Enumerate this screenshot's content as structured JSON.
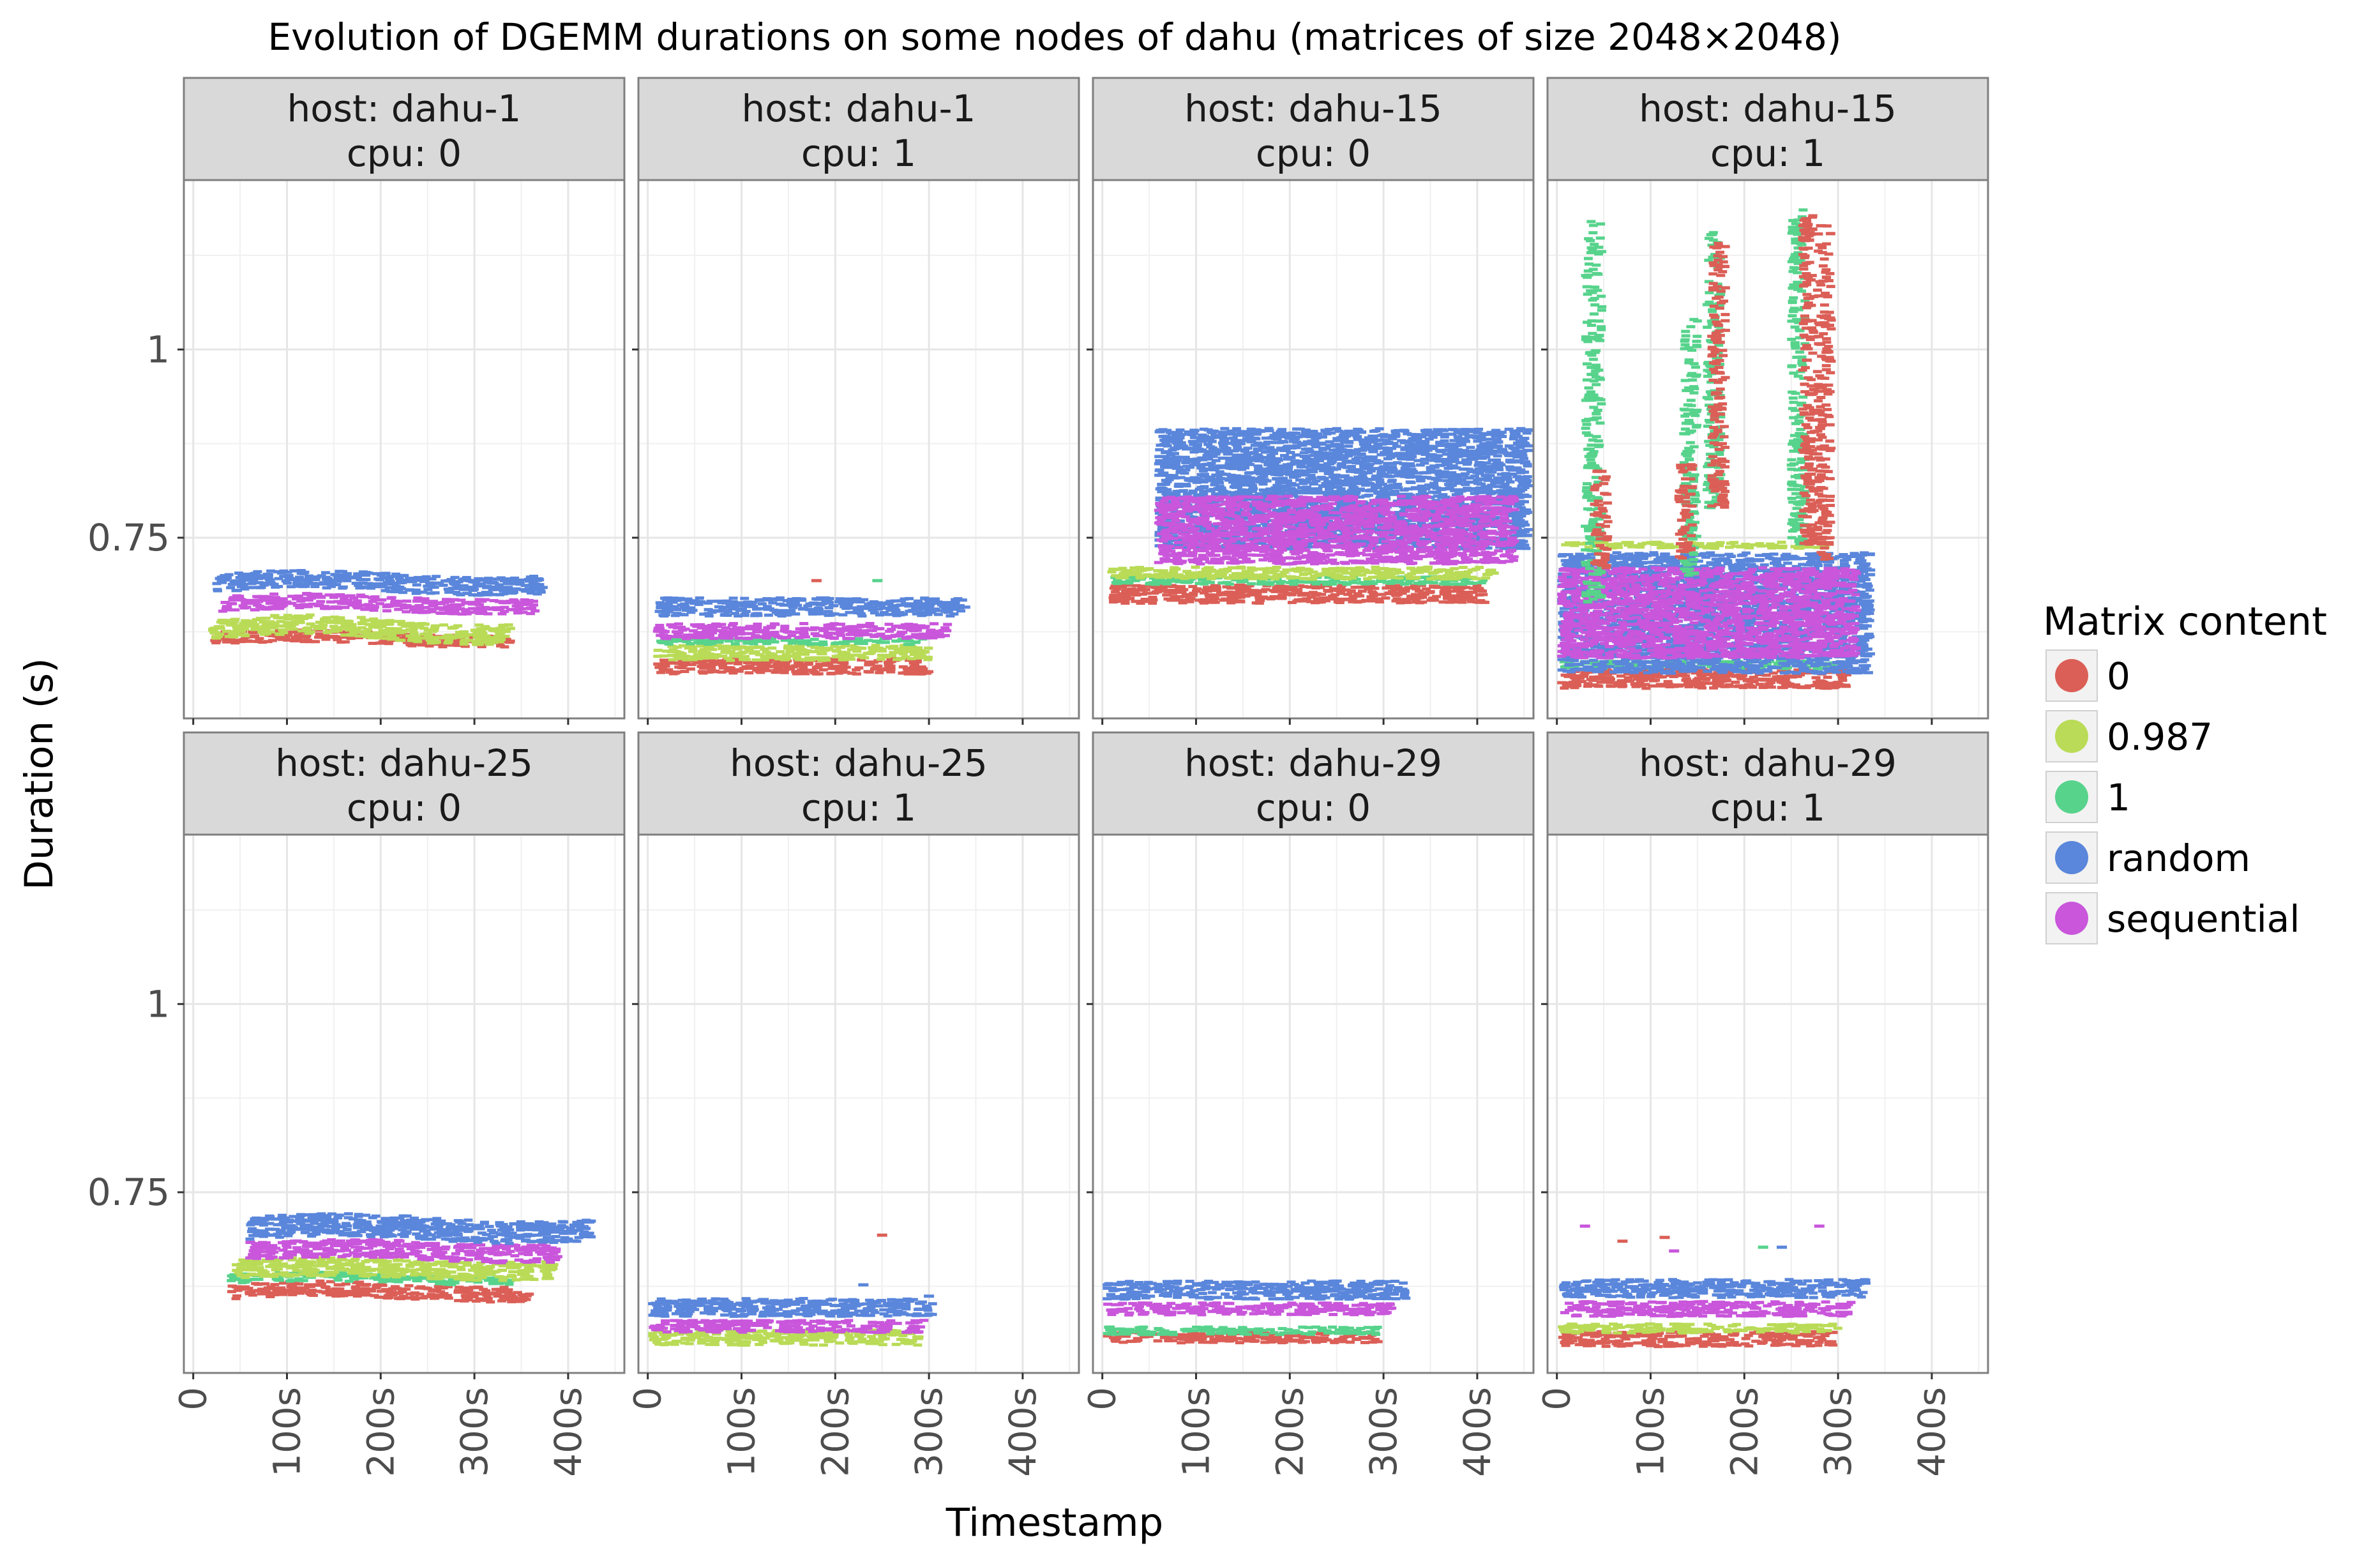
{
  "chart_data": {
    "type": "scatter",
    "title": "Evolution of DGEMM durations on some nodes of dahu (matrices of size 2048×2048)",
    "xlabel": "Timestamp",
    "ylabel": "Duration (s)",
    "xlim": [
      -10,
      460
    ],
    "ylim": [
      0.51,
      1.225
    ],
    "x_ticks": [
      {
        "value": 0,
        "label": "0"
      },
      {
        "value": 100,
        "label": "100s"
      },
      {
        "value": 200,
        "label": "200s"
      },
      {
        "value": 300,
        "label": "300s"
      },
      {
        "value": 400,
        "label": "400s"
      }
    ],
    "y_ticks": [
      {
        "value": 0.75,
        "label": "0.75"
      },
      {
        "value": 1,
        "label": "1"
      }
    ],
    "grid": true,
    "legend": {
      "title": "Matrix content",
      "position": "right",
      "entries": [
        {
          "name": "0",
          "color": "#DB5F57"
        },
        {
          "name": "0.987",
          "color": "#B9DB57"
        },
        {
          "name": "1",
          "color": "#57D38C"
        },
        {
          "name": "random",
          "color": "#5A86DB"
        },
        {
          "name": "sequential",
          "color": "#C956DB"
        }
      ]
    },
    "panels": [
      {
        "host": "host: dahu-1",
        "cpu": "cpu: 0",
        "bands": [
          {
            "series": "0",
            "x0": 20,
            "x1": 340,
            "y": 0.616,
            "amp": 0.004,
            "spread": 0.008
          },
          {
            "series": "0.987",
            "x0": 20,
            "x1": 340,
            "y": 0.628,
            "amp": 0.007,
            "spread": 0.013
          },
          {
            "series": "sequential",
            "x0": 30,
            "x1": 365,
            "y": 0.662,
            "amp": 0.004,
            "spread": 0.01
          },
          {
            "series": "random",
            "x0": 25,
            "x1": 375,
            "y": 0.69,
            "amp": 0.005,
            "spread": 0.012
          }
        ]
      },
      {
        "host": "host: dahu-1",
        "cpu": "cpu: 1",
        "bands": [
          {
            "series": "0",
            "x0": 10,
            "x1": 300,
            "y": 0.579,
            "amp": 0.0,
            "spread": 0.01
          },
          {
            "series": "0.987",
            "x0": 10,
            "x1": 300,
            "y": 0.597,
            "amp": 0.0,
            "spread": 0.01
          },
          {
            "series": "1",
            "x0": 10,
            "x1": 300,
            "y": 0.612,
            "amp": 0.0,
            "spread": 0.004
          },
          {
            "series": "sequential",
            "x0": 10,
            "x1": 320,
            "y": 0.626,
            "amp": 0.0,
            "spread": 0.01
          },
          {
            "series": "random",
            "x0": 10,
            "x1": 340,
            "y": 0.658,
            "amp": 0.0,
            "spread": 0.012
          }
        ],
        "points": [
          {
            "series": "0",
            "x": 180,
            "y": 0.693
          },
          {
            "series": "1",
            "x": 245,
            "y": 0.693
          }
        ]
      },
      {
        "host": "host: dahu-15",
        "cpu": "cpu: 0",
        "bands": [
          {
            "series": "0",
            "x0": 10,
            "x1": 410,
            "y": 0.675,
            "amp": 0.0,
            "spread": 0.012
          },
          {
            "series": "1",
            "x0": 10,
            "x1": 410,
            "y": 0.693,
            "amp": 0.0,
            "spread": 0.005
          },
          {
            "series": "0.987",
            "x0": 10,
            "x1": 420,
            "y": 0.703,
            "amp": 0.0,
            "spread": 0.008
          },
          {
            "series": "random",
            "x0": 60,
            "x1": 455,
            "y": 0.815,
            "amp": 0.0,
            "spread": 0.08
          },
          {
            "series": "sequential",
            "x0": 60,
            "x1": 440,
            "y": 0.76,
            "amp": 0.0,
            "spread": 0.045
          }
        ]
      },
      {
        "host": "host: dahu-15",
        "cpu": "cpu: 1",
        "bands": [
          {
            "series": "0",
            "x0": 5,
            "x1": 310,
            "y": 0.563,
            "amp": 0.0,
            "spread": 0.013
          },
          {
            "series": "1",
            "x0": 5,
            "x1": 310,
            "y": 0.581,
            "amp": 0.0,
            "spread": 0.005
          },
          {
            "series": "0.987",
            "x0": 5,
            "x1": 290,
            "y": 0.74,
            "amp": 0.0,
            "spread": 0.004
          },
          {
            "series": "random",
            "x0": 5,
            "x1": 335,
            "y": 0.65,
            "amp": 0.0,
            "spread": 0.08
          },
          {
            "series": "sequential",
            "x0": 5,
            "x1": 320,
            "y": 0.65,
            "amp": 0.0,
            "spread": 0.06
          }
        ],
        "spikes": [
          {
            "series": "1",
            "x0": 30,
            "x1": 48,
            "y0": 0.66,
            "y1": 1.17
          },
          {
            "series": "0",
            "x0": 40,
            "x1": 55,
            "y0": 0.71,
            "y1": 0.84
          },
          {
            "series": "1",
            "x0": 135,
            "x1": 150,
            "y0": 0.7,
            "y1": 1.04
          },
          {
            "series": "0",
            "x0": 130,
            "x1": 145,
            "y0": 0.72,
            "y1": 0.85
          },
          {
            "series": "1",
            "x0": 160,
            "x1": 175,
            "y0": 0.79,
            "y1": 1.16
          },
          {
            "series": "0",
            "x0": 165,
            "x1": 180,
            "y0": 0.79,
            "y1": 1.15
          },
          {
            "series": "1",
            "x0": 250,
            "x1": 265,
            "y0": 0.74,
            "y1": 1.19
          },
          {
            "series": "0",
            "x0": 262,
            "x1": 275,
            "y0": 0.74,
            "y1": 1.18
          },
          {
            "series": "0",
            "x0": 278,
            "x1": 293,
            "y0": 0.72,
            "y1": 1.17
          }
        ]
      },
      {
        "host": "host: dahu-25",
        "cpu": "cpu: 0",
        "bands": [
          {
            "series": "0",
            "x0": 40,
            "x1": 360,
            "y": 0.618,
            "amp": 0.004,
            "spread": 0.01
          },
          {
            "series": "1",
            "x0": 40,
            "x1": 340,
            "y": 0.635,
            "amp": 0.003,
            "spread": 0.006
          },
          {
            "series": "0.987",
            "x0": 45,
            "x1": 385,
            "y": 0.648,
            "amp": 0.003,
            "spread": 0.012
          },
          {
            "series": "sequential",
            "x0": 60,
            "x1": 390,
            "y": 0.672,
            "amp": 0.004,
            "spread": 0.012
          },
          {
            "series": "random",
            "x0": 60,
            "x1": 425,
            "y": 0.702,
            "amp": 0.005,
            "spread": 0.015
          }
        ]
      },
      {
        "host": "host: dahu-25",
        "cpu": "cpu: 1",
        "bands": [
          {
            "series": "0.987",
            "x0": 5,
            "x1": 290,
            "y": 0.557,
            "amp": 0.0,
            "spread": 0.01
          },
          {
            "series": "sequential",
            "x0": 5,
            "x1": 295,
            "y": 0.572,
            "amp": 0.0,
            "spread": 0.008
          },
          {
            "series": "random",
            "x0": 5,
            "x1": 305,
            "y": 0.597,
            "amp": 0.0,
            "spread": 0.012
          }
        ],
        "points": [
          {
            "series": "0",
            "x": 250,
            "y": 0.693
          },
          {
            "series": "random",
            "x": 230,
            "y": 0.627
          },
          {
            "series": "random",
            "x": 300,
            "y": 0.612
          }
        ]
      },
      {
        "host": "host: dahu-29",
        "cpu": "cpu: 0",
        "bands": [
          {
            "series": "0",
            "x0": 5,
            "x1": 295,
            "y": 0.557,
            "amp": 0.0,
            "spread": 0.007
          },
          {
            "series": "1",
            "x0": 5,
            "x1": 295,
            "y": 0.566,
            "amp": 0.0,
            "spread": 0.005
          },
          {
            "series": "sequential",
            "x0": 5,
            "x1": 310,
            "y": 0.595,
            "amp": 0.0,
            "spread": 0.008
          },
          {
            "series": "random",
            "x0": 5,
            "x1": 325,
            "y": 0.62,
            "amp": 0.0,
            "spread": 0.012
          }
        ],
        "points": [
          {
            "series": "random",
            "x": 250,
            "y": 0.632
          }
        ]
      },
      {
        "host": "host: dahu-29",
        "cpu": "cpu: 1",
        "bands": [
          {
            "series": "0",
            "x0": 5,
            "x1": 295,
            "y": 0.555,
            "amp": 0.0,
            "spread": 0.01
          },
          {
            "series": "0.987",
            "x0": 5,
            "x1": 300,
            "y": 0.569,
            "amp": 0.0,
            "spread": 0.006
          },
          {
            "series": "sequential",
            "x0": 5,
            "x1": 315,
            "y": 0.595,
            "amp": 0.0,
            "spread": 0.01
          },
          {
            "series": "random",
            "x0": 5,
            "x1": 330,
            "y": 0.622,
            "amp": 0.0,
            "spread": 0.012
          }
        ],
        "points": [
          {
            "series": "sequential",
            "x": 30,
            "y": 0.705
          },
          {
            "series": "0",
            "x": 70,
            "y": 0.685
          },
          {
            "series": "0",
            "x": 115,
            "y": 0.69
          },
          {
            "series": "sequential",
            "x": 125,
            "y": 0.672
          },
          {
            "series": "1",
            "x": 220,
            "y": 0.677
          },
          {
            "series": "random",
            "x": 240,
            "y": 0.677
          },
          {
            "series": "sequential",
            "x": 280,
            "y": 0.705
          }
        ]
      }
    ]
  }
}
